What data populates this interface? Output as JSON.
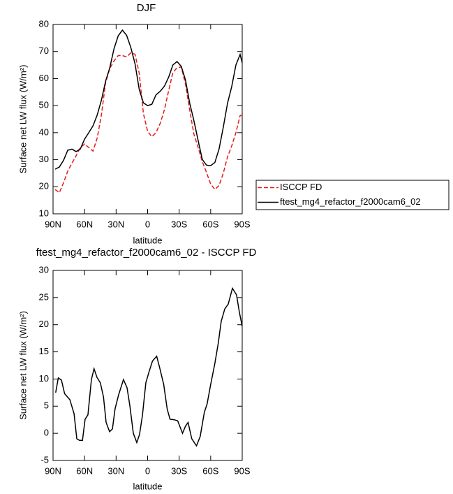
{
  "chart_data": [
    {
      "type": "line",
      "title": "DJF",
      "xlabel": "latitude",
      "ylabel": "Surface net LW flux (W/m²)",
      "xlim": [
        90,
        -90
      ],
      "ylim": [
        10,
        80
      ],
      "xticks": [
        {
          "value": 90,
          "label": "90N"
        },
        {
          "value": 60,
          "label": "60N"
        },
        {
          "value": 30,
          "label": "30N"
        },
        0,
        {
          "value": -30,
          "label": "30S"
        },
        {
          "value": -60,
          "label": "60S"
        },
        {
          "value": -90,
          "label": "90S"
        }
      ],
      "yticks": [
        10,
        20,
        30,
        40,
        50,
        60,
        70,
        80
      ],
      "legend_position": "right",
      "x": [
        88,
        84,
        80,
        76,
        72,
        68,
        64,
        60,
        56,
        52,
        48,
        44,
        40,
        36,
        32,
        28,
        24,
        20,
        16,
        12,
        8,
        4,
        0,
        -4,
        -8,
        -12,
        -16,
        -20,
        -24,
        -28,
        -32,
        -36,
        -40,
        -44,
        -48,
        -52,
        -56,
        -60,
        -64,
        -68,
        -72,
        -76,
        -80,
        -84,
        -88,
        -90
      ],
      "series": [
        {
          "name": "ISCCP FD",
          "color": "#e41a1c",
          "dash": true,
          "values": [
            19,
            17.8,
            21.5,
            25.8,
            28.7,
            31.5,
            34.5,
            35.8,
            34.5,
            33.2,
            38,
            46.5,
            58.5,
            63.8,
            66.5,
            68.5,
            68.5,
            68,
            69.5,
            69,
            62,
            47,
            40.5,
            38.5,
            40,
            43.5,
            48.5,
            55.5,
            62.2,
            64,
            64.3,
            58,
            48.5,
            39.5,
            34.6,
            29.3,
            25.3,
            21,
            19,
            20.5,
            25,
            31,
            35.1,
            40,
            46.3,
            46.5
          ]
        },
        {
          "name": "ftest_mg4_refactor_f2000cam6_02",
          "color": "#000000",
          "dash": false,
          "values": [
            26.5,
            27.3,
            29.8,
            33.5,
            33.9,
            33,
            34,
            37.6,
            40,
            42.5,
            46.5,
            52,
            59,
            64,
            71,
            75.8,
            77.9,
            76,
            71.5,
            65.5,
            56,
            51,
            50,
            50.5,
            54,
            55.3,
            57.2,
            60.5,
            65,
            66.3,
            64.5,
            59.5,
            51,
            44.5,
            37.2,
            30.1,
            28,
            27.8,
            29,
            34,
            42,
            50.8,
            57,
            65,
            68.9,
            65.8
          ]
        }
      ]
    },
    {
      "type": "line",
      "title": "ftest_mg4_refactor_f2000cam6_02 - ISCCP FD",
      "xlabel": "latitude",
      "ylabel": "Surface net LW flux (W/m²)",
      "xlim": [
        90,
        -90
      ],
      "ylim": [
        -5,
        30
      ],
      "xticks": [
        {
          "value": 90,
          "label": "90N"
        },
        {
          "value": 60,
          "label": "60N"
        },
        {
          "value": 30,
          "label": "30N"
        },
        0,
        {
          "value": -30,
          "label": "30S"
        },
        {
          "value": -60,
          "label": "60S"
        },
        {
          "value": -90,
          "label": "90S"
        }
      ],
      "yticks": [
        -5,
        0,
        5,
        10,
        15,
        20,
        25,
        30
      ],
      "x": [
        87.5,
        85,
        82,
        79,
        74,
        70,
        67.4,
        64.8,
        62,
        59.5,
        56.8,
        53.5,
        51,
        48.2,
        45,
        42,
        39.5,
        36.2,
        33.5,
        31,
        27.6,
        23,
        19.6,
        17,
        13.6,
        10.3,
        7.7,
        5,
        1.7,
        -1.3,
        -4.6,
        -8.6,
        -11.3,
        -15.3,
        -18.6,
        -21.3,
        -25.3,
        -28.6,
        -33.2,
        -36,
        -38.5,
        -42,
        -46.5,
        -50,
        -54,
        -56.6,
        -60,
        -64,
        -67.3,
        -70,
        -73.4,
        -76.7,
        -80.7,
        -84.6,
        -87.3,
        -90
      ],
      "series": [
        {
          "color": "#000000",
          "dash": false,
          "values": [
            7.5,
            10.2,
            9.8,
            7.3,
            6.2,
            3.6,
            -1,
            -1.3,
            -1.3,
            2.6,
            3.4,
            9.9,
            11.9,
            10.3,
            9.3,
            6.7,
            2,
            0.3,
            0.8,
            4.5,
            7.1,
            9.9,
            8.4,
            5.2,
            0,
            -1.7,
            -0.2,
            3.2,
            9.3,
            11.3,
            13.3,
            14.2,
            12.2,
            9,
            4.5,
            2.6,
            2.5,
            2.3,
            0,
            1.3,
            2,
            -1,
            -2.3,
            -0.6,
            3.9,
            5.4,
            9,
            12.9,
            16.7,
            20.6,
            22.9,
            23.8,
            26.7,
            25.5,
            22.3,
            19.7
          ]
        }
      ]
    }
  ]
}
